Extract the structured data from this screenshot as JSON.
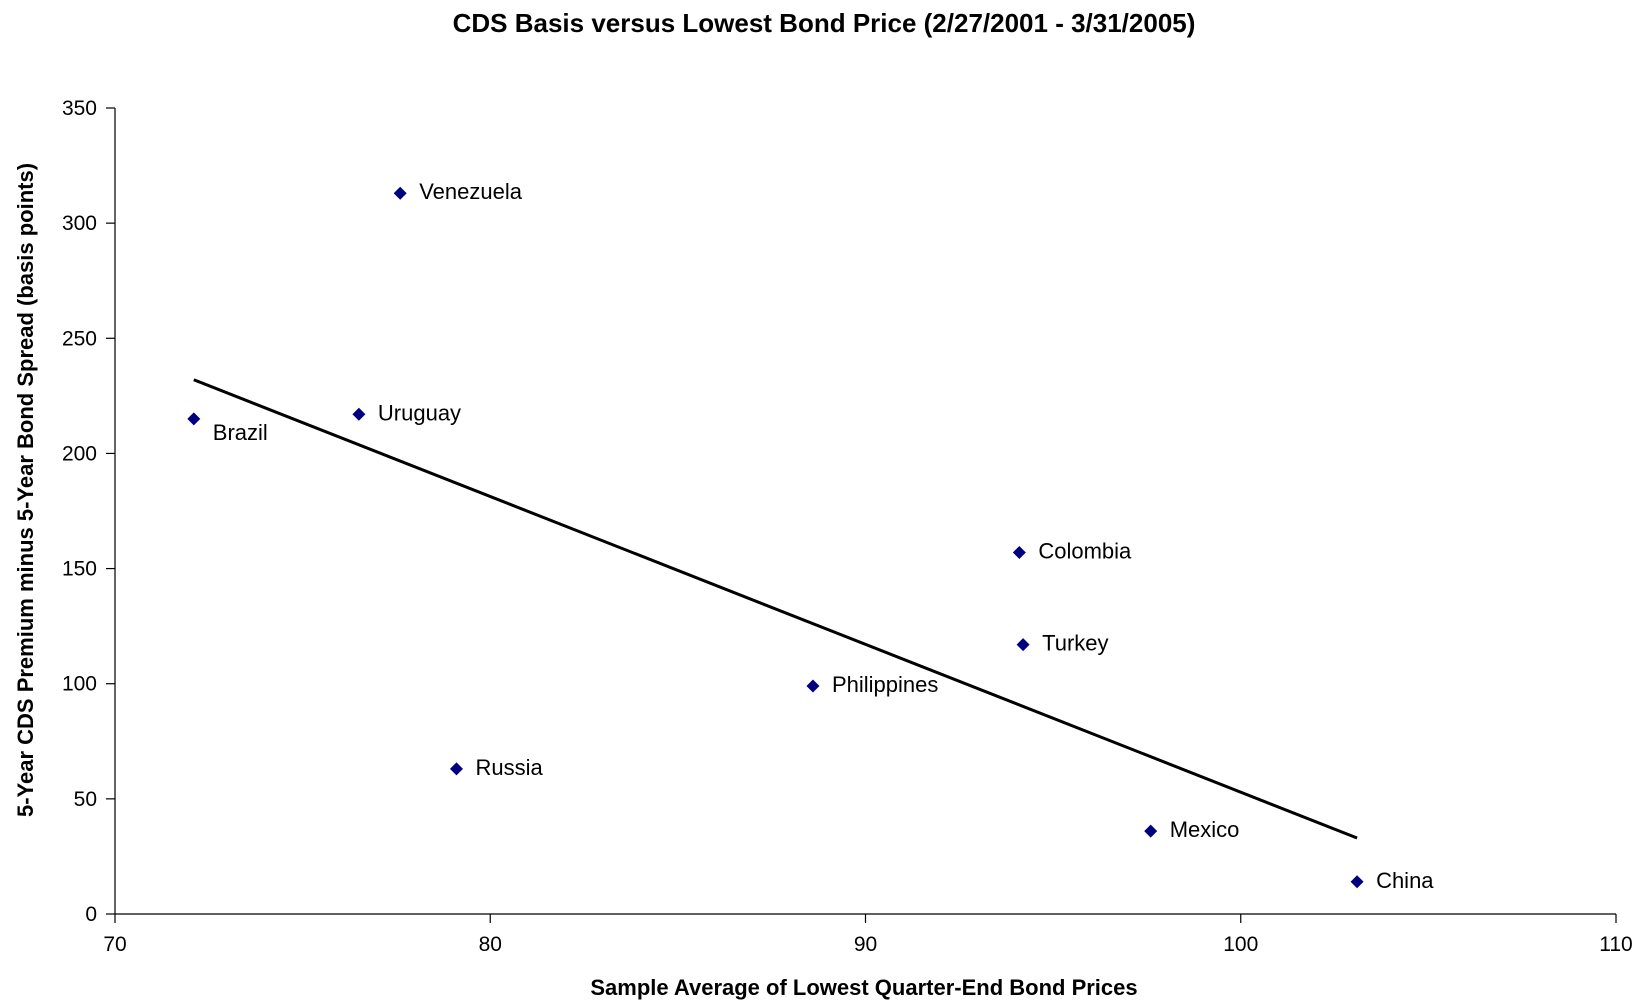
{
  "chart_data": {
    "type": "scatter",
    "title": "CDS Basis versus Lowest Bond Price (2/27/2001 - 3/31/2005)",
    "xlabel": "Sample Average of Lowest Quarter-End Bond Prices",
    "ylabel": "5-Year CDS Premium minus 5-Year Bond Spread (basis points)",
    "xlim": [
      70,
      110
    ],
    "ylim": [
      0,
      350
    ],
    "xticks": [
      "70",
      "80",
      "90",
      "100",
      "110"
    ],
    "yticks": [
      "0",
      "50",
      "100",
      "150",
      "200",
      "250",
      "300",
      "350"
    ],
    "grid": false,
    "marker": "diamond",
    "marker_color": "#000080",
    "line_color": "#000000",
    "points": [
      {
        "label": "Brazil",
        "x": 72.1,
        "y": 215
      },
      {
        "label": "Uruguay",
        "x": 76.5,
        "y": 217
      },
      {
        "label": "Venezuela",
        "x": 77.6,
        "y": 313
      },
      {
        "label": "Russia",
        "x": 79.1,
        "y": 63
      },
      {
        "label": "Philippines",
        "x": 88.6,
        "y": 99
      },
      {
        "label": "Colombia",
        "x": 94.1,
        "y": 157
      },
      {
        "label": "Turkey",
        "x": 94.2,
        "y": 117
      },
      {
        "label": "Mexico",
        "x": 97.6,
        "y": 36
      },
      {
        "label": "China",
        "x": 103.1,
        "y": 14
      }
    ],
    "trendline": {
      "x": [
        72.1,
        103.1
      ],
      "y": [
        232,
        33
      ]
    }
  }
}
